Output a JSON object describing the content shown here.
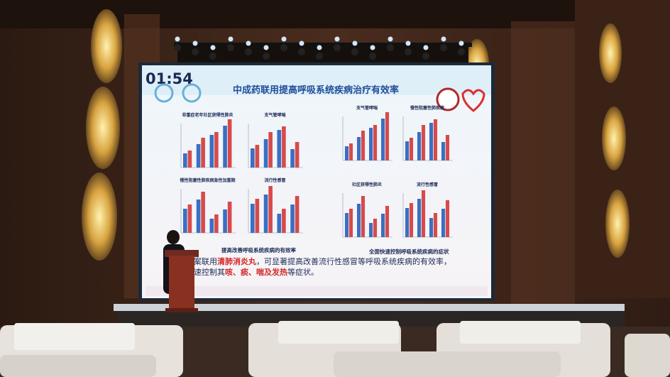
{
  "screen": {
    "timer": "01:54",
    "title": "中成药联用提高呼吸系统疾病治疗有效率",
    "left_panel": {
      "charts": [
        {
          "title": "非重症老年社区获得性肺炎"
        },
        {
          "title": "支气管哮喘"
        },
        {
          "title": "慢性阻塞性肺疾病急性加重期"
        },
        {
          "title": "流行性感冒"
        }
      ],
      "caption": "提高改善呼吸系统疾病的有效率"
    },
    "right_panel": {
      "charts": [
        {
          "title": "支气管哮喘"
        },
        {
          "title": "慢性阻塞性肺疾病"
        },
        {
          "title": "社区获得性肺炎"
        },
        {
          "title": "流行性感冒"
        }
      ],
      "caption": "全面快速控制呼吸系统疾病的症状"
    },
    "body_text": {
      "line1": [
        "方案联用",
        "清肺消炎丸",
        "，可显著提高改善流行性感冒等呼吸系统疾病的有效率，"
      ],
      "line2": [
        "快速控制其",
        "咳、痰、喘及发热",
        "等症状。"
      ]
    }
  }
}
